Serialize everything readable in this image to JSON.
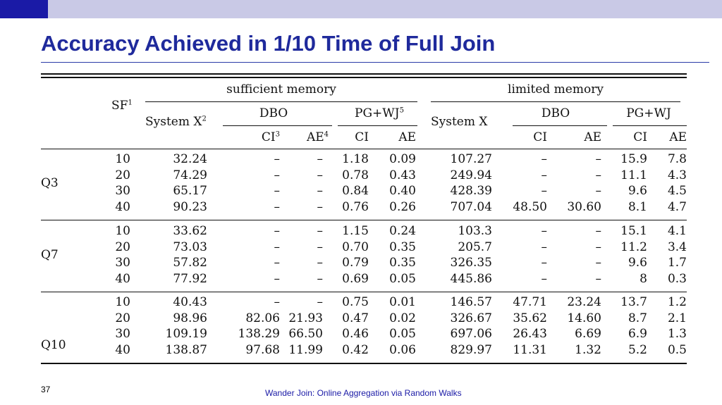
{
  "header": {
    "title": "Accuracy Achieved in 1/10 Time of Full Join"
  },
  "footer": {
    "page_number": "37",
    "caption": "Wander Join: Online Aggregation via Random Walks"
  },
  "table": {
    "sf_label": "SF",
    "sf_note": "1",
    "sufficient_label": "sufficient memory",
    "limited_label": "limited memory",
    "systemx_label": "System X",
    "systemx_note": "2",
    "systemx_label_limited": "System X",
    "dbo_label": "DBO",
    "pgwj_label": "PG+WJ",
    "pgwj_note": "5",
    "dbo_label_limited": "DBO",
    "pgwj_label_limited": "PG+WJ",
    "ci_label": "CI",
    "ci_note": "3",
    "ae_label": "AE",
    "ae_note": "4",
    "ci_plain": "CI",
    "ae_plain": "AE",
    "groups": [
      {
        "query": "Q3",
        "rows": [
          [
            "10",
            "32.24",
            "–",
            "–",
            "1.18",
            "0.09",
            "107.27",
            "–",
            "–",
            "15.9",
            "7.8"
          ],
          [
            "20",
            "74.29",
            "–",
            "–",
            "0.78",
            "0.43",
            "249.94",
            "–",
            "–",
            "11.1",
            "4.3"
          ],
          [
            "30",
            "65.17",
            "–",
            "–",
            "0.84",
            "0.40",
            "428.39",
            "–",
            "–",
            "9.6",
            "4.5"
          ],
          [
            "40",
            "90.23",
            "–",
            "–",
            "0.76",
            "0.26",
            "707.04",
            "48.50",
            "30.60",
            "8.1",
            "4.7"
          ]
        ]
      },
      {
        "query": "Q7",
        "rows": [
          [
            "10",
            "33.62",
            "–",
            "–",
            "1.15",
            "0.24",
            "103.3",
            "–",
            "–",
            "15.1",
            "4.1"
          ],
          [
            "20",
            "73.03",
            "–",
            "–",
            "0.70",
            "0.35",
            "205.7",
            "–",
            "–",
            "11.2",
            "3.4"
          ],
          [
            "30",
            "57.82",
            "–",
            "–",
            "0.79",
            "0.35",
            "326.35",
            "–",
            "–",
            "9.6",
            "1.7"
          ],
          [
            "40",
            "77.92",
            "–",
            "–",
            "0.69",
            "0.05",
            "445.86",
            "–",
            "–",
            "8",
            "0.3"
          ]
        ]
      },
      {
        "query": "Q10",
        "rows": [
          [
            "10",
            "40.43",
            "–",
            "–",
            "0.75",
            "0.01",
            "146.57",
            "47.71",
            "23.24",
            "13.7",
            "1.2"
          ],
          [
            "20",
            "98.96",
            "82.06",
            "21.93",
            "0.47",
            "0.02",
            "326.67",
            "35.62",
            "14.60",
            "8.7",
            "2.1"
          ],
          [
            "30",
            "109.19",
            "138.29",
            "66.50",
            "0.46",
            "0.05",
            "697.06",
            "26.43",
            "6.69",
            "6.9",
            "1.3"
          ],
          [
            "40",
            "138.87",
            "97.68",
            "11.99",
            "0.42",
            "0.06",
            "829.97",
            "11.31",
            "1.32",
            "5.2",
            "0.5"
          ]
        ]
      }
    ]
  }
}
